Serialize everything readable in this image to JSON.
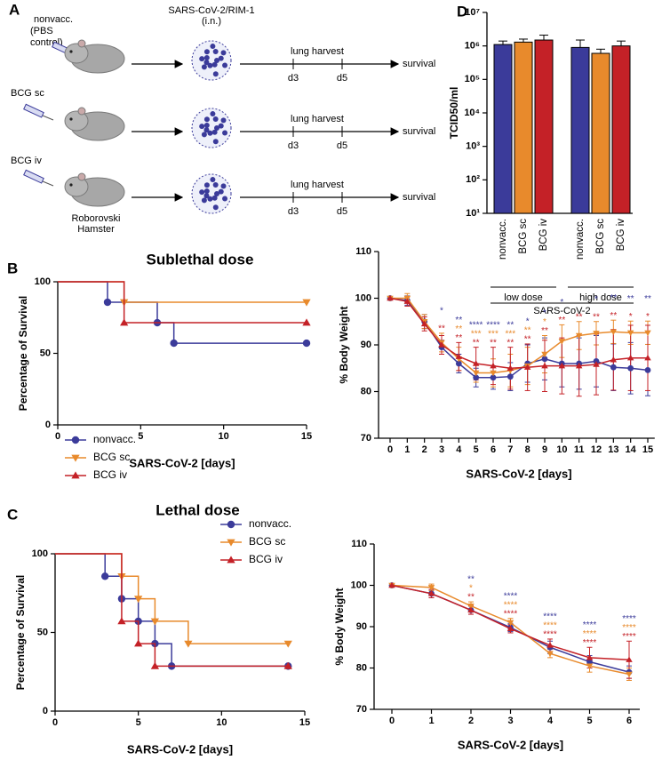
{
  "panels": [
    "A",
    "B",
    "C",
    "D"
  ],
  "schematic": {
    "groups": [
      {
        "label": [
          "nonvacc.",
          "(PBS",
          "control)"
        ]
      },
      {
        "label": [
          "BCG sc"
        ]
      },
      {
        "label": [
          "BCG iv"
        ]
      }
    ],
    "animal": [
      "Roborovski",
      "Hamster"
    ],
    "virus": [
      "SARS-CoV-2/RIM-1",
      "(i.n.)"
    ],
    "timeline": {
      "event": "lung harvest",
      "days": [
        "d3",
        "d5"
      ],
      "end": "survival"
    }
  },
  "chart_data": [
    {
      "type": "bar",
      "ylabel": "TCID50/ml",
      "xlabel": "SARS-CoV-2",
      "categories": [
        "nonvacc.",
        "BCG sc",
        "BCG iv",
        "nonvacc.",
        "BCG sc",
        "BCG iv"
      ],
      "values": [
        1100000,
        1300000,
        1500000,
        900000,
        600000,
        1000000
      ],
      "errors": [
        300000,
        300000,
        600000,
        600000,
        200000,
        400000
      ],
      "colors": [
        "#3b3b9a",
        "#e88a2c",
        "#c42127",
        "#3b3b9a",
        "#e88a2c",
        "#c42127"
      ],
      "groups": [
        "low dose",
        "high dose"
      ],
      "log_scale": true,
      "ylim": [
        10,
        10000000
      ],
      "yticks": [
        {
          "value": 10,
          "label": "10¹"
        },
        {
          "value": 100,
          "label": "10²"
        },
        {
          "value": 1000,
          "label": "10³"
        },
        {
          "value": 10000,
          "label": "10⁴"
        },
        {
          "value": 100000,
          "label": "10⁵"
        },
        {
          "value": 1000000,
          "label": "10⁶"
        },
        {
          "value": 10000000,
          "label": "10⁷"
        }
      ]
    },
    {
      "type": "step",
      "title": "Sublethal dose",
      "xlabel": "SARS-CoV-2 [days]",
      "ylabel": "Percentage of Survival",
      "xlim": [
        0,
        15
      ],
      "ylim": [
        0,
        100
      ],
      "xticks": [
        0,
        5,
        10,
        15
      ],
      "yticks": [
        0,
        50,
        100
      ],
      "legend": "lower left",
      "series": [
        {
          "name": "nonvacc.",
          "color": "#3b3b9a",
          "marker": "circle",
          "x": [
            0,
            3,
            6,
            7,
            15
          ],
          "values": [
            100,
            85.7,
            71.4,
            57.1,
            57.1
          ]
        },
        {
          "name": "BCG sc",
          "color": "#e88a2c",
          "marker": "triangle-down",
          "x": [
            0,
            4,
            15
          ],
          "values": [
            100,
            85.7,
            85.7
          ]
        },
        {
          "name": "BCG iv",
          "color": "#c42127",
          "marker": "triangle-up",
          "x": [
            0,
            4,
            15
          ],
          "values": [
            100,
            71.4,
            71.4
          ]
        }
      ]
    },
    {
      "type": "line",
      "xlabel": "SARS-CoV-2 [days]",
      "ylabel": "% Body Weight",
      "x": [
        0,
        1,
        2,
        3,
        4,
        5,
        6,
        7,
        8,
        9,
        10,
        11,
        12,
        13,
        14,
        15
      ],
      "xlim": [
        0,
        15
      ],
      "ylim": [
        70,
        110
      ],
      "xticks": [
        0,
        1,
        2,
        3,
        4,
        5,
        6,
        7,
        8,
        9,
        10,
        11,
        12,
        13,
        14,
        15
      ],
      "yticks": [
        70,
        80,
        90,
        100,
        110
      ],
      "series": [
        {
          "name": "nonvacc.",
          "color": "#3b3b9a",
          "marker": "circle",
          "values": [
            100,
            99.5,
            95,
            89.5,
            86,
            83,
            83,
            83.2,
            86,
            87,
            86,
            86,
            86.5,
            85.2,
            85,
            84.6
          ],
          "errors": [
            0,
            1,
            1.5,
            1.5,
            2,
            2,
            2.5,
            3,
            4,
            4.5,
            5,
            5.5,
            5.5,
            5,
            5.5,
            5.5
          ],
          "significance": [
            null,
            null,
            null,
            "*",
            "**",
            "****",
            "****",
            "**",
            "*",
            "*",
            "*",
            null,
            "*",
            "**",
            "**",
            "**"
          ]
        },
        {
          "name": "BCG sc",
          "color": "#e88a2c",
          "marker": "triangle-down",
          "values": [
            100,
            100,
            95,
            90.5,
            87,
            84,
            84,
            84.5,
            85.5,
            88,
            90.8,
            92,
            92.5,
            92.8,
            92.6,
            92.6
          ],
          "errors": [
            0,
            1,
            1.5,
            2,
            2.5,
            2,
            3,
            3.5,
            4,
            4,
            3.5,
            3,
            2.5,
            2.5,
            2.5,
            2.5
          ],
          "significance": [
            null,
            null,
            null,
            null,
            "**",
            "***",
            "***",
            "***",
            "**",
            "*",
            null,
            null,
            null,
            null,
            null,
            null
          ]
        },
        {
          "name": "BCG iv",
          "color": "#c42127",
          "marker": "triangle-up",
          "values": [
            100,
            99.3,
            94.5,
            90,
            87.5,
            86,
            85.5,
            85,
            85.2,
            85.5,
            85.5,
            85.5,
            85.8,
            86.8,
            87.2,
            87.2
          ],
          "errors": [
            0,
            1,
            1.5,
            2,
            3,
            3.5,
            4,
            4.5,
            5,
            5.5,
            6,
            6.5,
            6.5,
            6.5,
            7,
            7
          ],
          "significance": [
            null,
            null,
            null,
            "**",
            "**",
            "**",
            "**",
            "**",
            "**",
            "**",
            "**",
            "**",
            "**",
            "**",
            "*",
            "*"
          ]
        }
      ]
    },
    {
      "type": "step",
      "title": "Lethal dose",
      "xlabel": "SARS-CoV-2 [days]",
      "ylabel": "Percentage of Survival",
      "xlim": [
        0,
        15
      ],
      "ylim": [
        0,
        100
      ],
      "xticks": [
        0,
        5,
        10,
        15
      ],
      "yticks": [
        0,
        50,
        100
      ],
      "legend": "upper right",
      "series": [
        {
          "name": "nonvacc.",
          "color": "#3b3b9a",
          "marker": "circle",
          "x": [
            0,
            3,
            4,
            5,
            6,
            7,
            14
          ],
          "values": [
            100,
            85.7,
            71.4,
            57.1,
            42.9,
            28.6,
            28.6
          ]
        },
        {
          "name": "BCG sc",
          "color": "#e88a2c",
          "marker": "triangle-down",
          "x": [
            0,
            4,
            5,
            6,
            8,
            14
          ],
          "values": [
            100,
            85.7,
            71.4,
            57.1,
            42.9,
            42.9
          ]
        },
        {
          "name": "BCG iv",
          "color": "#c42127",
          "marker": "triangle-up",
          "x": [
            0,
            4,
            5,
            6,
            14
          ],
          "values": [
            100,
            57.1,
            42.9,
            28.6,
            28.6
          ]
        }
      ]
    },
    {
      "type": "line",
      "xlabel": "SARS-CoV-2 [days]",
      "ylabel": "% Body Weight",
      "x": [
        0,
        1,
        2,
        3,
        4,
        5,
        6
      ],
      "xlim": [
        0,
        6
      ],
      "ylim": [
        70,
        110
      ],
      "xticks": [
        0,
        1,
        2,
        3,
        4,
        5,
        6
      ],
      "yticks": [
        70,
        80,
        90,
        100,
        110
      ],
      "series": [
        {
          "name": "nonvacc.",
          "color": "#3b3b9a",
          "marker": "circle",
          "values": [
            100,
            98,
            94,
            89.8,
            85,
            81.5,
            79
          ],
          "errors": [
            0,
            1,
            1,
            1,
            1.5,
            1.5,
            1.5
          ],
          "significance": [
            null,
            null,
            "**",
            "****",
            "****",
            "****",
            "****"
          ]
        },
        {
          "name": "BCG sc",
          "color": "#e88a2c",
          "marker": "triangle-down",
          "values": [
            100,
            99.5,
            95,
            91,
            83.5,
            80.5,
            78.5
          ],
          "errors": [
            0,
            0.8,
            1,
            1,
            1,
            1.5,
            1.5
          ],
          "significance": [
            null,
            null,
            "*",
            "****",
            "****",
            "****",
            "****"
          ]
        },
        {
          "name": "BCG iv",
          "color": "#c42127",
          "marker": "triangle-up",
          "values": [
            100,
            98,
            94,
            89.5,
            85.5,
            82.5,
            82
          ],
          "errors": [
            0,
            1,
            1,
            1,
            1.5,
            2.5,
            4.5
          ],
          "significance": [
            null,
            null,
            "**",
            "****",
            "****",
            "****",
            "****"
          ]
        }
      ]
    }
  ]
}
